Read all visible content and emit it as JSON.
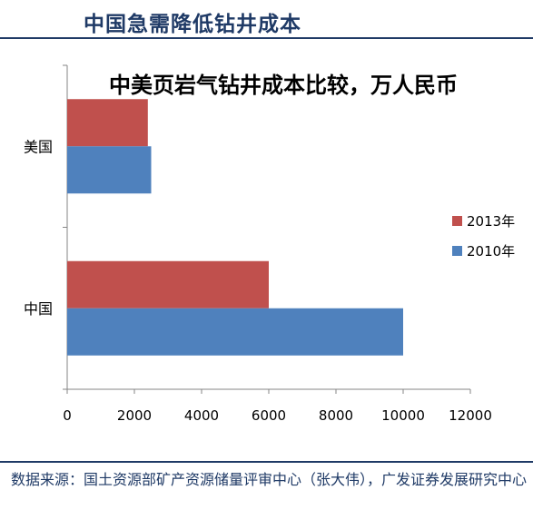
{
  "header": {
    "title": "中国急需降低钻井成本"
  },
  "chart_data": {
    "type": "bar",
    "orientation": "horizontal",
    "title": "中美页岩气钻井成本比较，万人民币",
    "categories": [
      "美国",
      "中国"
    ],
    "series": [
      {
        "name": "2013年",
        "values": [
          2400,
          6000
        ],
        "color": "#c0504d"
      },
      {
        "name": "2010年",
        "values": [
          2500,
          10000
        ],
        "color": "#4f81bd"
      }
    ],
    "xlim": [
      0,
      12000
    ],
    "xticks": [
      0,
      2000,
      4000,
      6000,
      8000,
      10000,
      12000
    ],
    "legend_position": "right",
    "grid": false
  },
  "footer": {
    "source": "数据来源：国土资源部矿产资源储量评审中心（张大伟），广发证券发展研究中心"
  }
}
